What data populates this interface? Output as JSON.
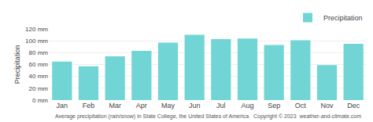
{
  "chart_data": {
    "type": "bar",
    "categories": [
      "Jan",
      "Feb",
      "Mar",
      "Apr",
      "May",
      "Jun",
      "Jul",
      "Aug",
      "Sep",
      "Oct",
      "Nov",
      "Dec"
    ],
    "series": [
      {
        "name": "Precipitation",
        "color": "#72d5d5",
        "values": [
          65,
          57,
          74,
          83,
          97,
          110,
          103,
          104,
          93,
          101,
          59,
          95
        ]
      }
    ],
    "ylabel": "Precipitation",
    "ylim": [
      0,
      120
    ],
    "yticks": [
      {
        "value": 0,
        "label": "0 mm"
      },
      {
        "value": 20,
        "label": "20 mm"
      },
      {
        "value": 40,
        "label": "40 mm"
      },
      {
        "value": 60,
        "label": "60 mm"
      },
      {
        "value": 80,
        "label": "80 mm"
      },
      {
        "value": 100,
        "label": "100 mm"
      },
      {
        "value": 120,
        "label": "120 mm"
      }
    ],
    "grid": true,
    "legend": "upper right",
    "annotations": [
      "Average precipitation (rain/snow) in State College, the United States of America   Copyright © 2023  weather-and-climate.com"
    ]
  }
}
